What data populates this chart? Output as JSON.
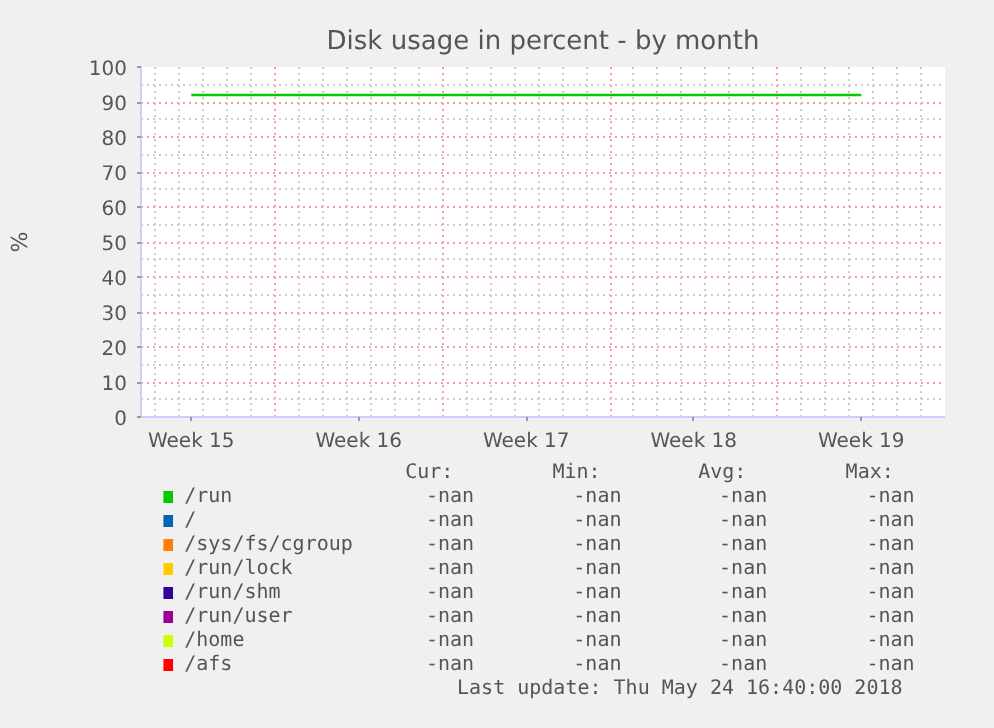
{
  "chart_data": {
    "type": "line",
    "title": "Disk usage in percent - by month",
    "ylabel": "%",
    "categories": [
      "Week 15",
      "Week 16",
      "Week 17",
      "Week 18",
      "Week 19"
    ],
    "ylim": [
      0,
      100
    ],
    "yticks": [
      0,
      10,
      20,
      30,
      40,
      50,
      60,
      70,
      80,
      90,
      100
    ],
    "grid": true,
    "legend": "bottom",
    "marker": "none",
    "line_style": "solid",
    "series": [
      {
        "name": "/run",
        "color": "#00cc00",
        "values": [
          92,
          92,
          92,
          92,
          92
        ]
      },
      {
        "name": "/",
        "color": "#0066b3",
        "values": [
          null,
          null,
          null,
          null,
          null
        ]
      },
      {
        "name": "/sys/fs/cgroup",
        "color": "#ff8000",
        "values": [
          null,
          null,
          null,
          null,
          null
        ]
      },
      {
        "name": "/run/lock",
        "color": "#ffcc00",
        "values": [
          null,
          null,
          null,
          null,
          null
        ]
      },
      {
        "name": "/run/shm",
        "color": "#330099",
        "values": [
          null,
          null,
          null,
          null,
          null
        ]
      },
      {
        "name": "/run/user",
        "color": "#990099",
        "values": [
          null,
          null,
          null,
          null,
          null
        ]
      },
      {
        "name": "/home",
        "color": "#ccff00",
        "values": [
          null,
          null,
          null,
          null,
          null
        ]
      },
      {
        "name": "/afs",
        "color": "#ff0000",
        "values": [
          null,
          null,
          null,
          null,
          null
        ]
      }
    ],
    "annotations": [
      "Cur:",
      "Min:",
      "Avg:",
      "Max:",
      "-nan",
      "-nan",
      "-nan",
      "-nan",
      "-nan",
      "-nan",
      "-nan",
      "-nan",
      "-nan",
      "-nan",
      "-nan",
      "-nan",
      "-nan",
      "-nan",
      "-nan",
      "-nan",
      "-nan",
      "-nan",
      "-nan",
      "-nan",
      "-nan",
      "-nan",
      "-nan",
      "-nan",
      "-nan",
      "-nan",
      "-nan",
      "-nan",
      "-nan",
      "-nan",
      "-nan",
      "-nan",
      "Last update:  Thu May 24 16:40:00 2018"
    ]
  }
}
